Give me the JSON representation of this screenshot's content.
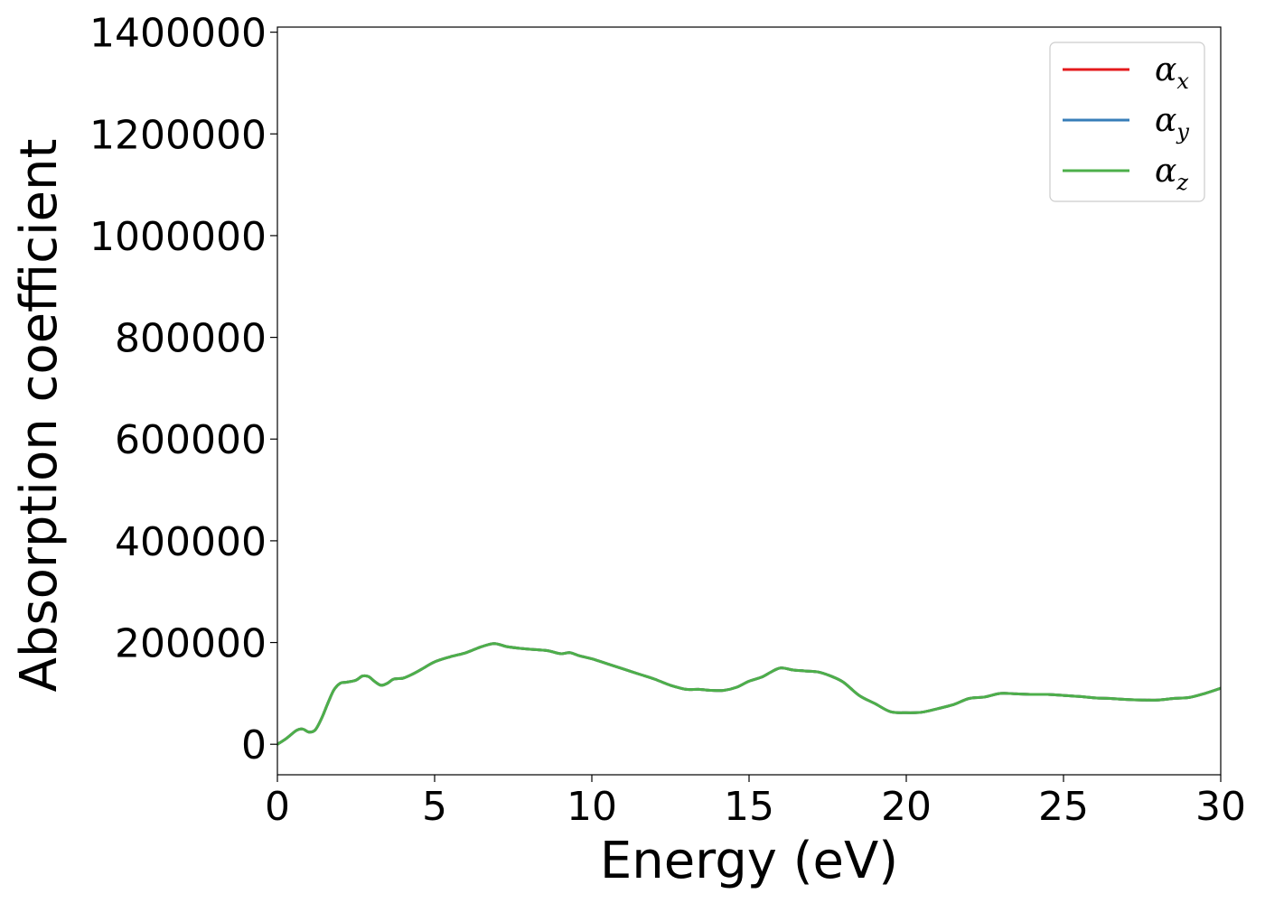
{
  "chart_data": {
    "type": "line",
    "title": "",
    "xlabel": "Energy (eV)",
    "ylabel": "Absorption coefficient",
    "xlim": [
      0,
      30
    ],
    "ylim": [
      -60000,
      1410000
    ],
    "xticks": [
      0,
      5,
      10,
      15,
      20,
      25,
      30
    ],
    "xtick_labels": [
      "0",
      "5",
      "10",
      "15",
      "20",
      "25",
      "30"
    ],
    "yticks": [
      0,
      200000,
      400000,
      600000,
      800000,
      1000000,
      1200000,
      1400000
    ],
    "ytick_labels": [
      "0",
      "200000",
      "400000",
      "600000",
      "800000",
      "1000000",
      "1200000",
      "1400000"
    ],
    "grid": false,
    "legend_position": "top-right",
    "x": [
      0,
      0.3,
      0.6,
      0.8,
      1.0,
      1.2,
      1.4,
      1.6,
      1.8,
      2.0,
      2.2,
      2.5,
      2.7,
      2.9,
      3.1,
      3.3,
      3.5,
      3.7,
      4.0,
      4.3,
      4.6,
      5.0,
      5.5,
      6.0,
      6.5,
      6.9,
      7.3,
      7.8,
      8.2,
      8.6,
      9.0,
      9.3,
      9.6,
      10.0,
      10.5,
      11.0,
      11.5,
      12.0,
      12.5,
      13.0,
      13.4,
      13.8,
      14.2,
      14.6,
      15.0,
      15.4,
      15.7,
      16.0,
      16.4,
      16.8,
      17.2,
      17.6,
      18.0,
      18.5,
      19.0,
      19.5,
      20.0,
      20.5,
      21.0,
      21.5,
      22.0,
      22.5,
      23.0,
      23.5,
      24.0,
      24.5,
      25.0,
      25.5,
      26.0,
      26.5,
      27.0,
      27.5,
      28.0,
      28.5,
      29.0,
      29.5,
      30.0
    ],
    "series": [
      {
        "name": "α_x",
        "label_base": "α",
        "label_sub": "x",
        "color": "#e41a1c",
        "values": [
          0,
          12000,
          27000,
          30000,
          24000,
          28000,
          50000,
          80000,
          107000,
          120000,
          122000,
          126000,
          134000,
          133000,
          123000,
          116000,
          120000,
          128000,
          130000,
          138000,
          148000,
          162000,
          172000,
          180000,
          192000,
          198000,
          192000,
          188000,
          186000,
          184000,
          178000,
          180000,
          174000,
          168000,
          158000,
          148000,
          138000,
          128000,
          116000,
          108000,
          108000,
          106000,
          106000,
          112000,
          124000,
          132000,
          142000,
          150000,
          146000,
          144000,
          142000,
          134000,
          122000,
          96000,
          80000,
          64000,
          62000,
          63000,
          70000,
          78000,
          90000,
          93000,
          100000,
          99000,
          98000,
          98000,
          96000,
          94000,
          91000,
          90000,
          88000,
          87000,
          87000,
          90000,
          92000,
          100000,
          110000
        ]
      },
      {
        "name": "α_y",
        "label_base": "α",
        "label_sub": "y",
        "color": "#377eb8",
        "values": [
          0,
          12000,
          27000,
          30000,
          24000,
          28000,
          50000,
          80000,
          107000,
          120000,
          122000,
          126000,
          134000,
          133000,
          123000,
          116000,
          120000,
          128000,
          130000,
          138000,
          148000,
          162000,
          172000,
          180000,
          192000,
          198000,
          192000,
          188000,
          186000,
          184000,
          178000,
          180000,
          174000,
          168000,
          158000,
          148000,
          138000,
          128000,
          116000,
          108000,
          108000,
          106000,
          106000,
          112000,
          124000,
          132000,
          142000,
          150000,
          146000,
          144000,
          142000,
          134000,
          122000,
          96000,
          80000,
          64000,
          62000,
          63000,
          70000,
          78000,
          90000,
          93000,
          100000,
          99000,
          98000,
          98000,
          96000,
          94000,
          91000,
          90000,
          88000,
          87000,
          87000,
          90000,
          92000,
          100000,
          110000
        ]
      },
      {
        "name": "α_z",
        "label_base": "α",
        "label_sub": "z",
        "color": "#4daf4a",
        "values": [
          0,
          12000,
          27000,
          30000,
          24000,
          28000,
          50000,
          80000,
          107000,
          120000,
          122000,
          126000,
          134000,
          133000,
          123000,
          116000,
          120000,
          128000,
          130000,
          138000,
          148000,
          162000,
          172000,
          180000,
          192000,
          198000,
          192000,
          188000,
          186000,
          184000,
          178000,
          180000,
          174000,
          168000,
          158000,
          148000,
          138000,
          128000,
          116000,
          108000,
          108000,
          106000,
          106000,
          112000,
          124000,
          132000,
          142000,
          150000,
          146000,
          144000,
          142000,
          134000,
          122000,
          96000,
          80000,
          64000,
          62000,
          63000,
          70000,
          78000,
          90000,
          93000,
          100000,
          99000,
          98000,
          98000,
          96000,
          94000,
          91000,
          90000,
          88000,
          87000,
          87000,
          90000,
          92000,
          100000,
          110000
        ]
      }
    ]
  }
}
